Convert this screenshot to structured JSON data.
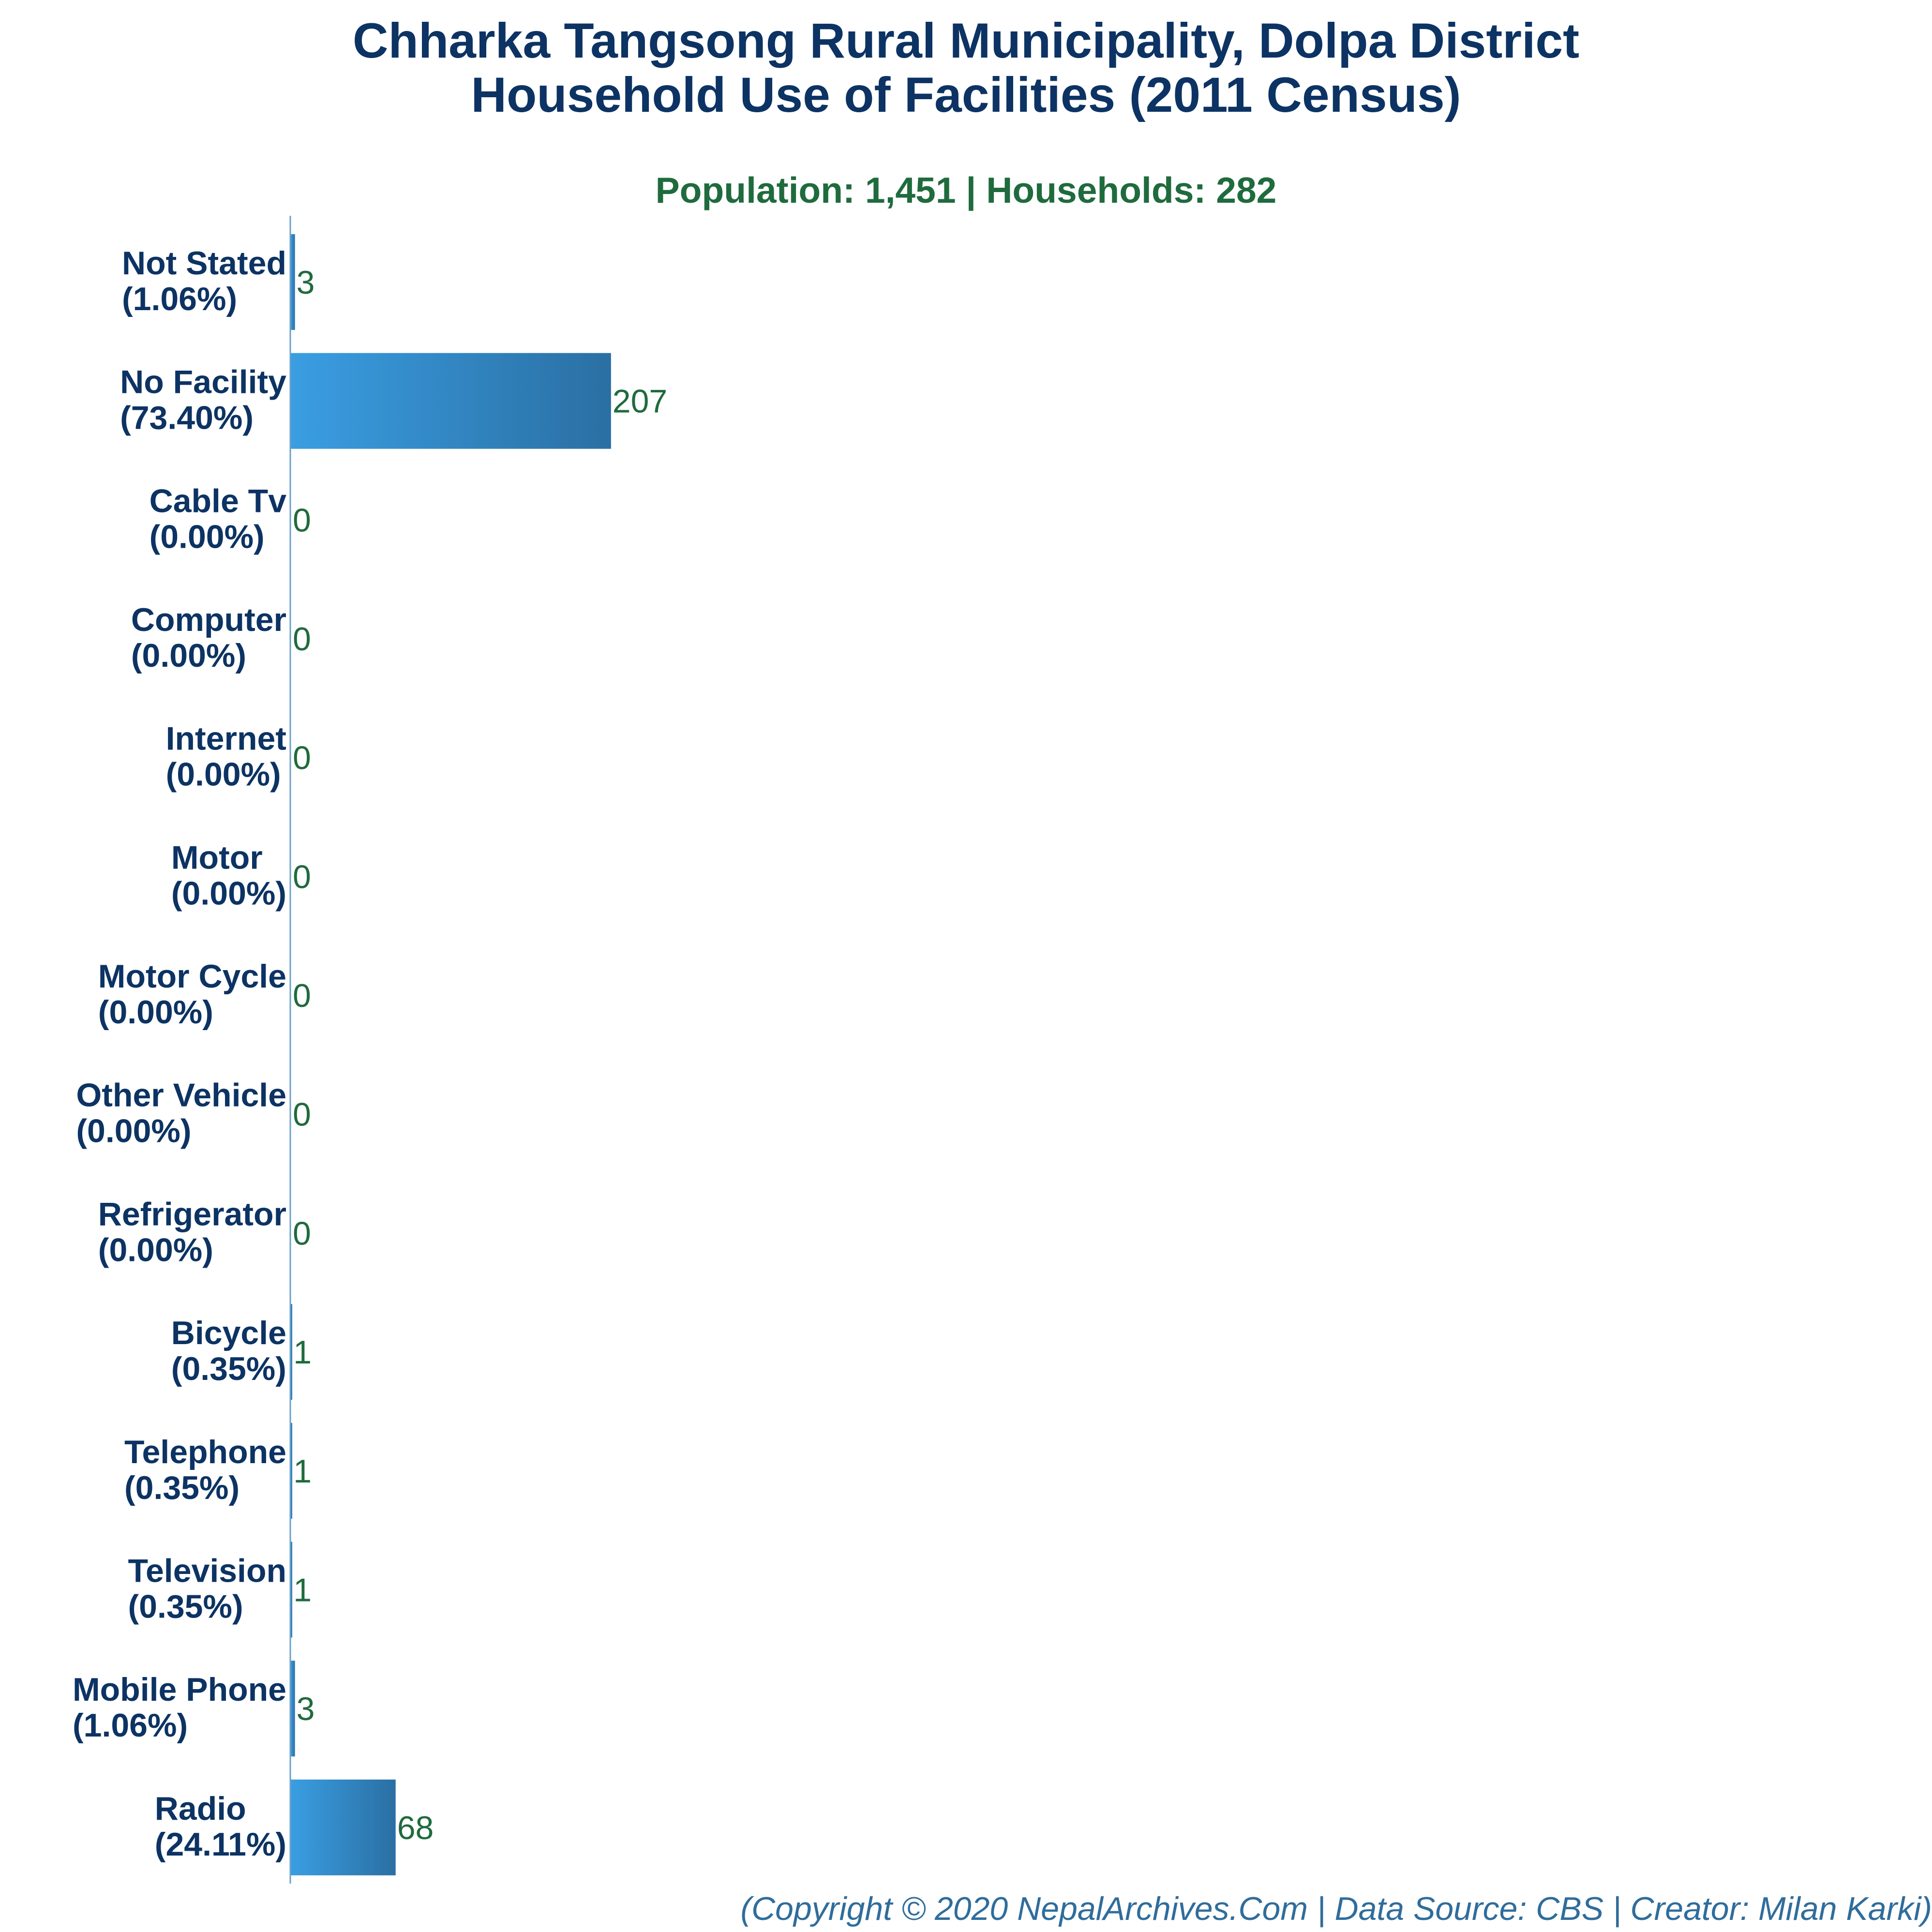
{
  "header": {
    "title_line1": "Chharka Tangsong Rural Municipality, Dolpa District",
    "title_line2": "Household Use of Facilities (2011 Census)",
    "subtitle": "Population: 1,451 | Households: 282"
  },
  "footer": {
    "credit": "(Copyright © 2020 NepalArchives.Com | Data Source: CBS | Creator: Milan Karki)"
  },
  "colors": {
    "title": "#0c3363",
    "subtitle": "#1f6b3d",
    "bar_start": "#3a9ee2",
    "bar_end": "#2a6fa3",
    "axis": "#6aa0c8",
    "footer": "#2f6d9c"
  },
  "chart_data": {
    "type": "bar",
    "orientation": "horizontal",
    "title": "Chharka Tangsong Rural Municipality, Dolpa District Household Use of Facilities (2011 Census)",
    "subtitle": "Population: 1,451 | Households: 282",
    "xlabel": "",
    "ylabel": "",
    "grid": false,
    "legend": "none",
    "xlim": [
      0,
      1040
    ],
    "categories": [
      "Not Stated",
      "No Facility",
      "Cable Tv",
      "Computer",
      "Internet",
      "Motor",
      "Motor Cycle",
      "Other Vehicle",
      "Refrigerator",
      "Bicycle",
      "Telephone",
      "Television",
      "Mobile Phone",
      "Radio"
    ],
    "category_labels": [
      "Not Stated",
      "No Facility",
      "Cable Tv",
      "Computer",
      "Internet",
      "Motor",
      "Motor Cycle",
      "Other Vehicle",
      "Refrigerator",
      "Bicycle",
      "Telephone",
      "Television",
      "Mobile Phone",
      "Radio"
    ],
    "percent_labels": [
      "(1.06%)",
      "(73.40%)",
      "(0.00%)",
      "(0.00%)",
      "(0.00%)",
      "(0.00%)",
      "(0.00%)",
      "(0.00%)",
      "(0.00%)",
      "(0.35%)",
      "(0.35%)",
      "(0.35%)",
      "(1.06%)",
      "(24.11%)"
    ],
    "values": [
      3,
      207,
      0,
      0,
      0,
      0,
      0,
      0,
      0,
      1,
      1,
      1,
      3,
      68
    ]
  }
}
